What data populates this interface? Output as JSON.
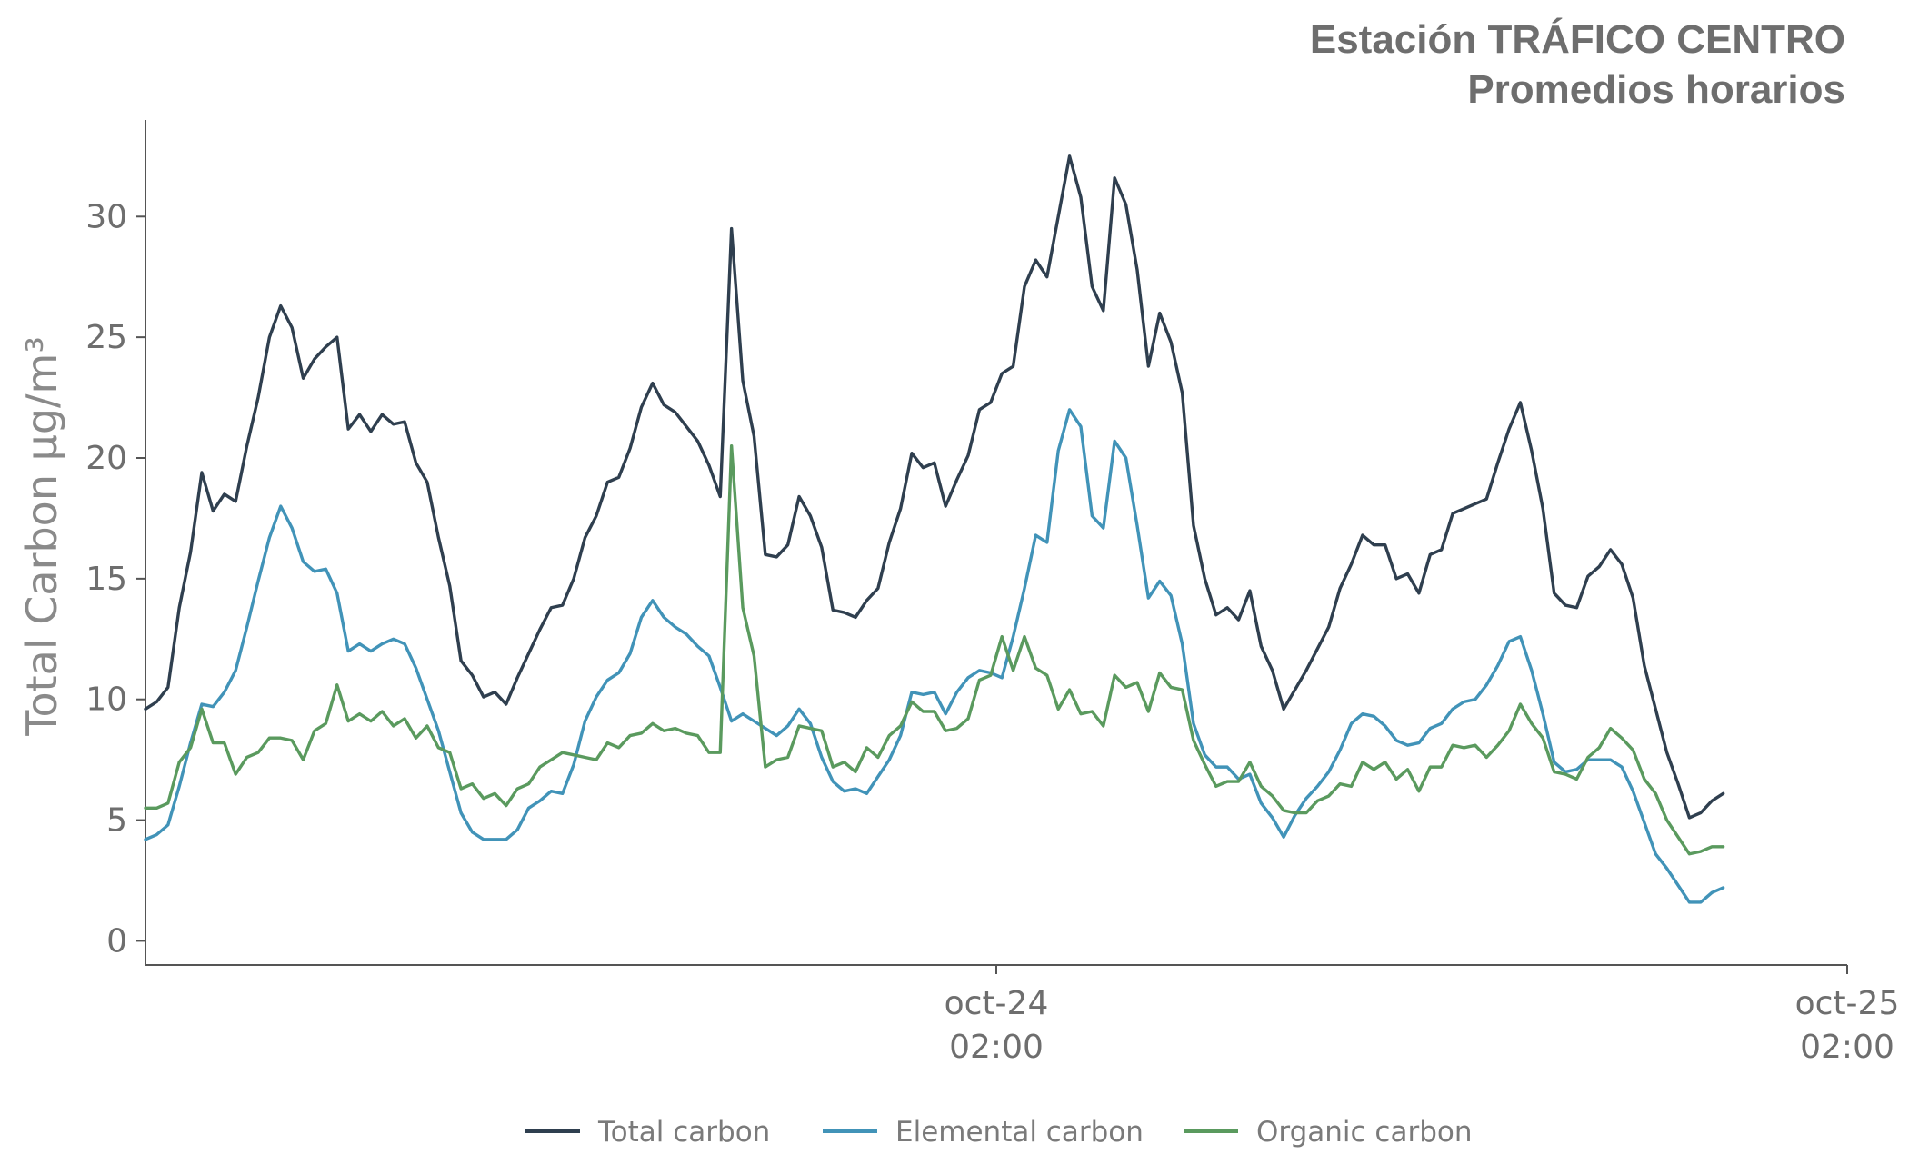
{
  "chart_data": {
    "type": "line",
    "title": "Estación TRÁFICO CENTRO",
    "subtitle": "Promedios horarios",
    "xlabel": "",
    "ylabel": "Total Carbon μg/m³",
    "ylim": [
      -1,
      34
    ],
    "yticks": [
      0,
      5,
      10,
      15,
      20,
      25,
      30
    ],
    "xlim": [
      0,
      151
    ],
    "xticks": [
      {
        "x": 75.5,
        "line1": "oct-24",
        "line2": "02:00"
      },
      {
        "x": 151,
        "line1": "oct-25",
        "line2": "02:00"
      }
    ],
    "legend_position": "bottom-center",
    "series": [
      {
        "name": "Total carbon",
        "color": "#2f3f4f",
        "values": [
          9.6,
          9.9,
          10.5,
          13.8,
          16.1,
          19.4,
          17.8,
          18.5,
          18.2,
          20.5,
          22.5,
          25.0,
          26.3,
          25.4,
          23.3,
          24.1,
          24.6,
          25.0,
          21.2,
          21.8,
          21.1,
          21.8,
          21.4,
          21.5,
          19.8,
          19.0,
          16.7,
          14.7,
          11.6,
          11.0,
          10.1,
          10.3,
          9.8,
          10.9,
          11.9,
          12.9,
          13.8,
          13.9,
          15.0,
          16.7,
          17.6,
          19.0,
          19.2,
          20.4,
          22.1,
          23.1,
          22.2,
          21.9,
          21.3,
          20.7,
          19.7,
          18.4,
          29.5,
          23.2,
          20.9,
          16.0,
          15.9,
          16.4,
          18.4,
          17.6,
          16.3,
          13.7,
          13.6,
          13.4,
          14.1,
          14.6,
          16.5,
          17.9,
          20.2,
          19.6,
          19.8,
          18.0,
          19.1,
          20.1,
          22.0,
          22.3,
          23.5,
          23.8,
          27.1,
          28.2,
          27.5,
          30.0,
          32.5,
          30.8,
          27.1,
          26.1,
          31.6,
          30.5,
          27.8,
          23.8,
          26.0,
          24.8,
          22.7,
          17.2,
          15.0,
          13.5,
          13.8,
          13.3,
          14.5,
          12.2,
          11.2,
          9.6,
          10.4,
          11.2,
          12.1,
          13.0,
          14.6,
          15.6,
          16.8,
          16.4,
          16.4,
          15.0,
          15.2,
          14.4,
          16.0,
          16.2,
          17.7,
          17.9,
          18.1,
          18.3,
          19.8,
          21.2,
          22.3,
          20.3,
          17.9,
          14.4,
          13.9,
          13.8,
          15.1,
          15.5,
          16.2,
          15.6,
          14.2,
          11.4,
          9.6,
          7.8,
          6.5,
          5.1,
          5.3,
          5.8,
          6.1
        ]
      },
      {
        "name": "Elemental carbon",
        "color": "#4193b8",
        "values": [
          4.2,
          4.4,
          4.8,
          6.4,
          8.2,
          9.8,
          9.7,
          10.3,
          11.2,
          13.0,
          14.9,
          16.7,
          18.0,
          17.1,
          15.7,
          15.3,
          15.4,
          14.4,
          12.0,
          12.3,
          12.0,
          12.3,
          12.5,
          12.3,
          11.3,
          10.0,
          8.7,
          7.0,
          5.3,
          4.5,
          4.2,
          4.2,
          4.2,
          4.6,
          5.5,
          5.8,
          6.2,
          6.1,
          7.3,
          9.1,
          10.1,
          10.8,
          11.1,
          11.9,
          13.4,
          14.1,
          13.4,
          13.0,
          12.7,
          12.2,
          11.8,
          10.5,
          9.1,
          9.4,
          9.1,
          8.8,
          8.5,
          8.9,
          9.6,
          9.0,
          7.6,
          6.6,
          6.2,
          6.3,
          6.1,
          6.8,
          7.5,
          8.5,
          10.3,
          10.2,
          10.3,
          9.4,
          10.3,
          10.9,
          11.2,
          11.1,
          10.9,
          12.6,
          14.6,
          16.8,
          16.5,
          20.3,
          22.0,
          21.3,
          17.6,
          17.1,
          20.7,
          20.0,
          17.2,
          14.2,
          14.9,
          14.3,
          12.3,
          9.0,
          7.7,
          7.2,
          7.2,
          6.7,
          6.9,
          5.7,
          5.1,
          4.3,
          5.2,
          5.9,
          6.4,
          7.0,
          7.9,
          9.0,
          9.4,
          9.3,
          8.9,
          8.3,
          8.1,
          8.2,
          8.8,
          9.0,
          9.6,
          9.9,
          10.0,
          10.6,
          11.4,
          12.4,
          12.6,
          11.2,
          9.4,
          7.4,
          7.0,
          7.1,
          7.5,
          7.5,
          7.5,
          7.2,
          6.2,
          4.9,
          3.6,
          3.0,
          2.3,
          1.6,
          1.6,
          2.0,
          2.2
        ]
      },
      {
        "name": "Organic carbon",
        "color": "#5a9a5e",
        "values": [
          5.5,
          5.5,
          5.7,
          7.4,
          8.0,
          9.6,
          8.2,
          8.2,
          6.9,
          7.6,
          7.8,
          8.4,
          8.4,
          8.3,
          7.5,
          8.7,
          9.0,
          10.6,
          9.1,
          9.4,
          9.1,
          9.5,
          8.9,
          9.2,
          8.4,
          8.9,
          8.0,
          7.8,
          6.3,
          6.5,
          5.9,
          6.1,
          5.6,
          6.3,
          6.5,
          7.2,
          7.5,
          7.8,
          7.7,
          7.6,
          7.5,
          8.2,
          8.0,
          8.5,
          8.6,
          9.0,
          8.7,
          8.8,
          8.6,
          8.5,
          7.8,
          7.8,
          20.5,
          13.8,
          11.8,
          7.2,
          7.5,
          7.6,
          8.9,
          8.8,
          8.7,
          7.2,
          7.4,
          7.0,
          8.0,
          7.6,
          8.5,
          8.9,
          9.9,
          9.5,
          9.5,
          8.7,
          8.8,
          9.2,
          10.8,
          11.0,
          12.6,
          11.2,
          12.6,
          11.3,
          11.0,
          9.6,
          10.4,
          9.4,
          9.5,
          8.9,
          11.0,
          10.5,
          10.7,
          9.5,
          11.1,
          10.5,
          10.4,
          8.3,
          7.3,
          6.4,
          6.6,
          6.6,
          7.4,
          6.4,
          6.0,
          5.4,
          5.3,
          5.3,
          5.8,
          6.0,
          6.5,
          6.4,
          7.4,
          7.1,
          7.4,
          6.7,
          7.1,
          6.2,
          7.2,
          7.2,
          8.1,
          8.0,
          8.1,
          7.6,
          8.1,
          8.7,
          9.8,
          9.0,
          8.4,
          7.0,
          6.9,
          6.7,
          7.6,
          8.0,
          8.8,
          8.4,
          7.9,
          6.7,
          6.1,
          5.0,
          4.3,
          3.6,
          3.7,
          3.9,
          3.9
        ]
      }
    ]
  }
}
